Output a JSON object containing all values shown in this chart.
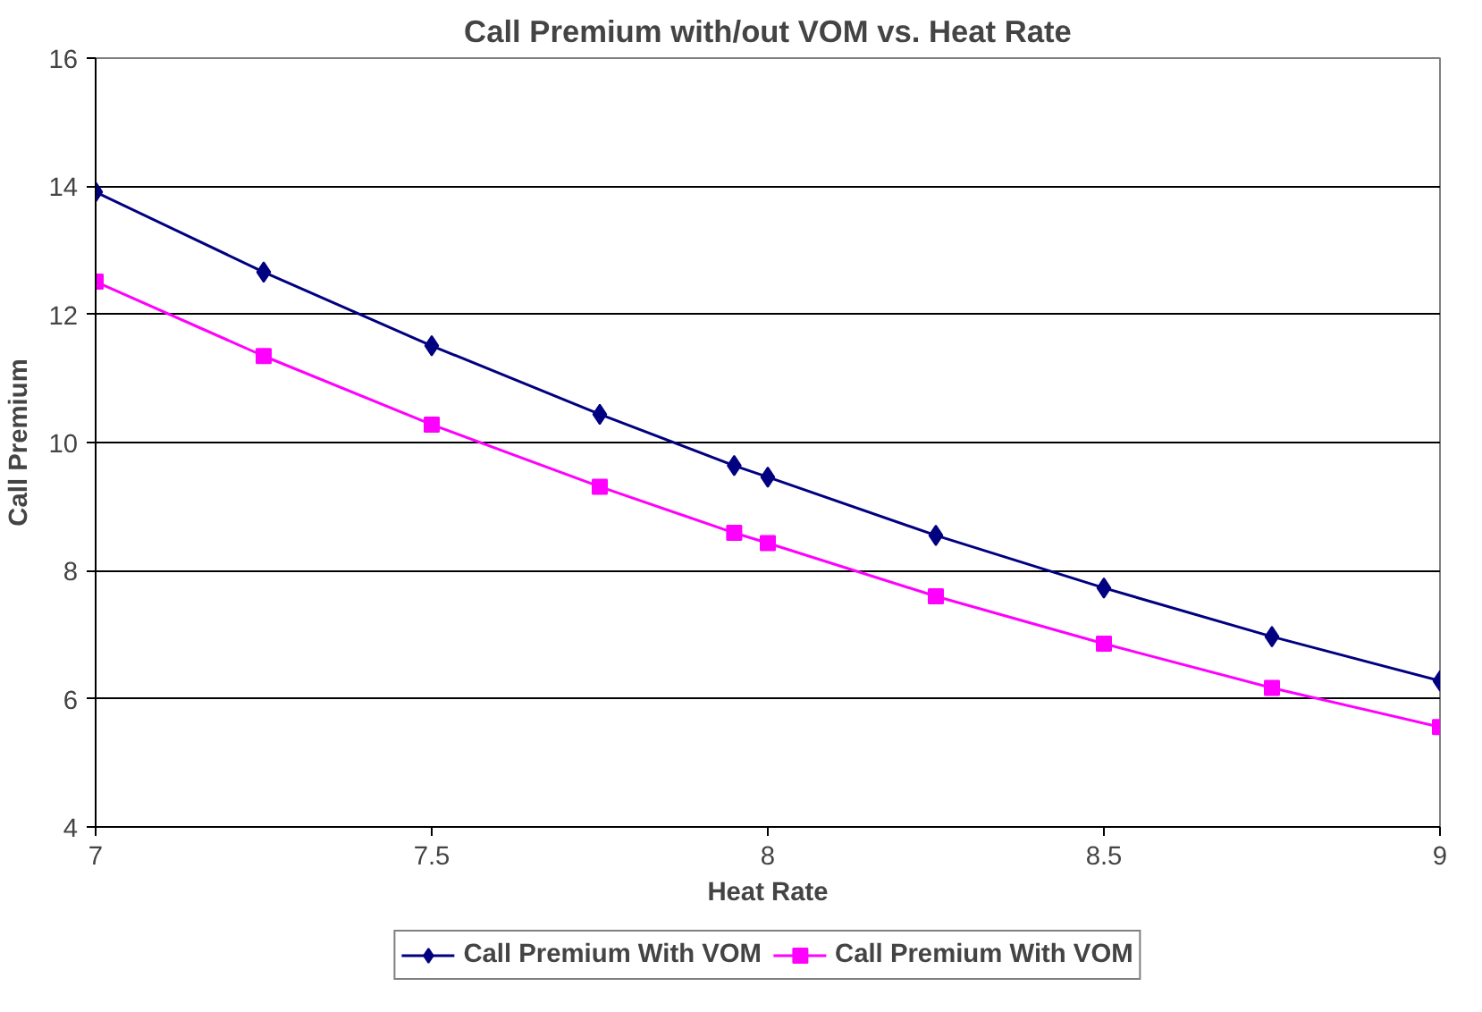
{
  "chart_data": {
    "type": "line",
    "title": "Call Premium with/out VOM vs. Heat Rate",
    "xlabel": "Heat Rate",
    "ylabel": "Call Premium",
    "x": [
      7,
      7.25,
      7.5,
      7.75,
      7.95,
      8,
      8.25,
      8.5,
      8.75,
      9
    ],
    "series": [
      {
        "name": "Call Premium With VOM",
        "color": "#000080",
        "marker": "diamond",
        "values": [
          13.91,
          12.66,
          11.51,
          10.44,
          9.64,
          9.46,
          8.55,
          7.73,
          6.97,
          6.28
        ]
      },
      {
        "name": "Call Premium With VOM",
        "color": "#ff00ff",
        "marker": "square",
        "values": [
          12.51,
          11.35,
          10.28,
          9.31,
          8.59,
          8.43,
          7.6,
          6.86,
          6.17,
          5.56
        ]
      }
    ],
    "xlim": [
      7,
      9
    ],
    "xticks": [
      7,
      7.5,
      8,
      8.5,
      9
    ],
    "ylim": [
      4,
      16
    ],
    "yticks": [
      4,
      6,
      8,
      10,
      12,
      14,
      16
    ],
    "grid": "y",
    "legend": "bottom",
    "line_style": "solid"
  }
}
